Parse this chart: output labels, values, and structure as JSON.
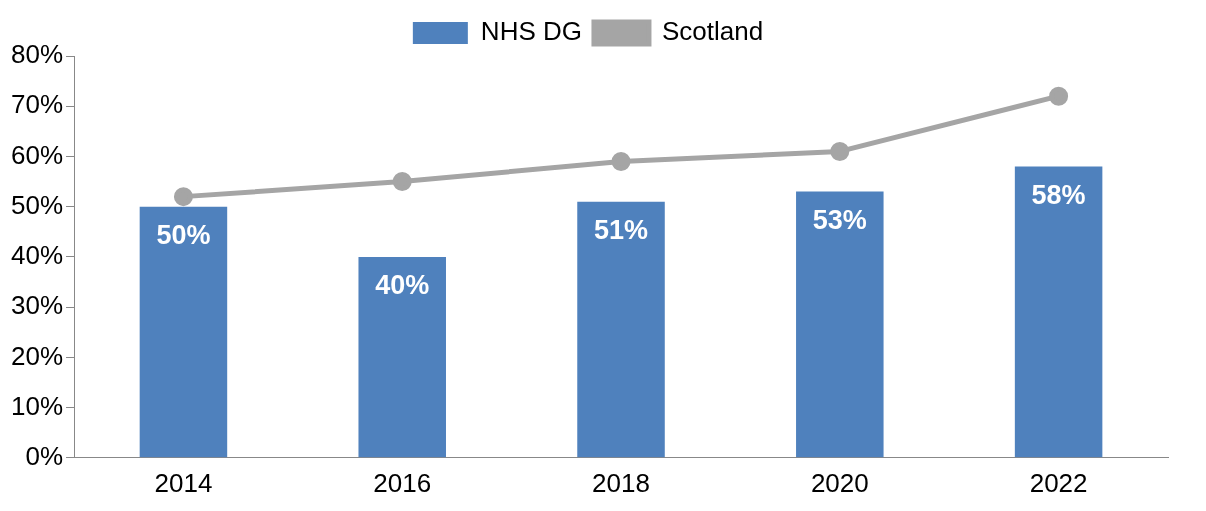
{
  "chart_data": {
    "type": "bar",
    "categories": [
      "2014",
      "2016",
      "2018",
      "2020",
      "2022"
    ],
    "series": [
      {
        "name": "NHS DG",
        "color": "#4f81bd",
        "values": [
          50,
          40,
          51,
          53,
          58
        ],
        "value_labels": [
          "50%",
          "40%",
          "51%",
          "53%",
          "58%"
        ]
      },
      {
        "name": "Scotland",
        "type": "line",
        "color": "#a5a5a5",
        "values": [
          52,
          55,
          59,
          61,
          72
        ],
        "marker": "circle"
      }
    ],
    "ylim": [
      0,
      80
    ],
    "yticks": [
      {
        "value": 0,
        "label": "0%"
      },
      {
        "value": 10,
        "label": "10%"
      },
      {
        "value": 20,
        "label": "20%"
      },
      {
        "value": 30,
        "label": "30%"
      },
      {
        "value": 40,
        "label": "40%"
      },
      {
        "value": 50,
        "label": "50%"
      },
      {
        "value": 60,
        "label": "60%"
      },
      {
        "value": 70,
        "label": "70%"
      },
      {
        "value": 80,
        "label": "80%"
      }
    ],
    "grid": false,
    "legend": "top"
  }
}
